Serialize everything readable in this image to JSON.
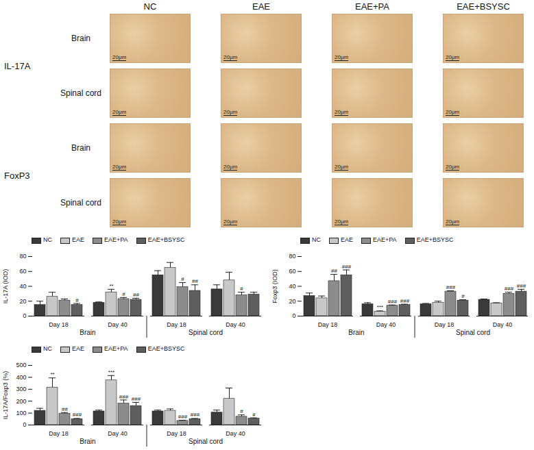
{
  "micrographs": {
    "columns": [
      "NC",
      "EAE",
      "EAE+PA",
      "EAE+BSYSC"
    ],
    "rows": [
      {
        "marker": "IL-17A",
        "tissues": [
          "Brain",
          "Spinal cord"
        ]
      },
      {
        "marker": "FoxP3",
        "tissues": [
          "Brain",
          "Spinal cord"
        ]
      }
    ],
    "scale_bar": "20μm"
  },
  "chart_data": [
    {
      "type": "bar",
      "y_label": "IL-17A (IOD)",
      "categories": [
        "Day 18",
        "Day 40",
        "Day 18",
        "Day 40"
      ],
      "category_groups": [
        "Brain",
        "Brain",
        "Spinal cord",
        "Spinal cord"
      ],
      "ylim": [
        0,
        80
      ],
      "yticks": [
        0,
        20,
        40,
        60,
        80
      ],
      "legend": "top",
      "series": [
        {
          "name": "NC",
          "color": "#3a3a3a",
          "values": [
            15,
            18,
            55,
            36
          ],
          "errors": [
            5,
            1,
            6,
            6
          ],
          "annotations": [
            null,
            null,
            null,
            null
          ]
        },
        {
          "name": "EAE",
          "color": "#c8c8c8",
          "values": [
            26,
            32,
            65,
            48
          ],
          "errors": [
            6,
            4,
            7,
            11
          ],
          "annotations": [
            null,
            "**",
            null,
            null
          ]
        },
        {
          "name": "EAE+PA",
          "color": "#8c8c8c",
          "values": [
            21,
            23,
            39,
            28
          ],
          "errors": [
            2,
            2,
            6,
            4
          ],
          "annotations": [
            null,
            "#",
            "#",
            "#"
          ]
        },
        {
          "name": "EAE+BSYSC",
          "color": "#5e5e5e",
          "values": [
            15,
            22,
            34,
            29
          ],
          "errors": [
            2,
            2,
            8,
            3
          ],
          "annotations": [
            "#",
            "##",
            "##",
            null
          ]
        }
      ]
    },
    {
      "type": "bar",
      "y_label": "Foxp3 (IOD)",
      "categories": [
        "Day 18",
        "Day 40",
        "Day 18",
        "Day 40"
      ],
      "category_groups": [
        "Brain",
        "Brain",
        "Spinal cord",
        "Spinal cord"
      ],
      "ylim": [
        0,
        80
      ],
      "yticks": [
        0,
        20,
        40,
        60,
        80
      ],
      "legend": "top",
      "series": [
        {
          "name": "NC",
          "color": "#3a3a3a",
          "values": [
            27,
            16,
            16,
            22
          ],
          "errors": [
            4,
            2,
            1,
            1
          ],
          "annotations": [
            null,
            null,
            null,
            null
          ]
        },
        {
          "name": "EAE",
          "color": "#c8c8c8",
          "values": [
            24,
            6,
            18,
            17
          ],
          "errors": [
            3,
            1,
            2,
            1
          ],
          "annotations": [
            null,
            "***",
            null,
            null
          ]
        },
        {
          "name": "EAE+PA",
          "color": "#8c8c8c",
          "values": [
            47,
            14,
            33,
            30
          ],
          "errors": [
            9,
            1,
            1,
            2
          ],
          "annotations": [
            "##",
            "###",
            "###",
            "###"
          ]
        },
        {
          "name": "EAE+BSYSC",
          "color": "#5e5e5e",
          "values": [
            55,
            15,
            21,
            33
          ],
          "errors": [
            7,
            1,
            1,
            3
          ],
          "annotations": [
            "###",
            "###",
            "#",
            "###"
          ]
        }
      ]
    },
    {
      "type": "bar",
      "y_label": "IL-17A/Foxp3 (%)",
      "categories": [
        "Day 18",
        "Day 40",
        "Day 18",
        "Day 40"
      ],
      "category_groups": [
        "Brain",
        "Brain",
        "Spinal cord",
        "Spinal cord"
      ],
      "ylim": [
        0,
        500
      ],
      "yticks": [
        0,
        100,
        200,
        300,
        400,
        500
      ],
      "legend": "top",
      "series": [
        {
          "name": "NC",
          "color": "#3a3a3a",
          "values": [
            120,
            115,
            115,
            105
          ],
          "errors": [
            20,
            10,
            10,
            20
          ],
          "annotations": [
            null,
            null,
            null,
            null
          ]
        },
        {
          "name": "EAE",
          "color": "#c8c8c8",
          "values": [
            315,
            375,
            120,
            220
          ],
          "errors": [
            80,
            40,
            15,
            90
          ],
          "annotations": [
            "**",
            "***",
            null,
            null
          ]
        },
        {
          "name": "EAE+PA",
          "color": "#8c8c8c",
          "values": [
            95,
            180,
            35,
            70
          ],
          "errors": [
            10,
            30,
            5,
            15
          ],
          "annotations": [
            "##",
            "###",
            "###",
            "#"
          ]
        },
        {
          "name": "EAE+BSYSC",
          "color": "#5e5e5e",
          "values": [
            50,
            160,
            50,
            55
          ],
          "errors": [
            5,
            30,
            5,
            5
          ],
          "annotations": [
            "###",
            "###",
            "###",
            "#"
          ]
        }
      ]
    }
  ]
}
